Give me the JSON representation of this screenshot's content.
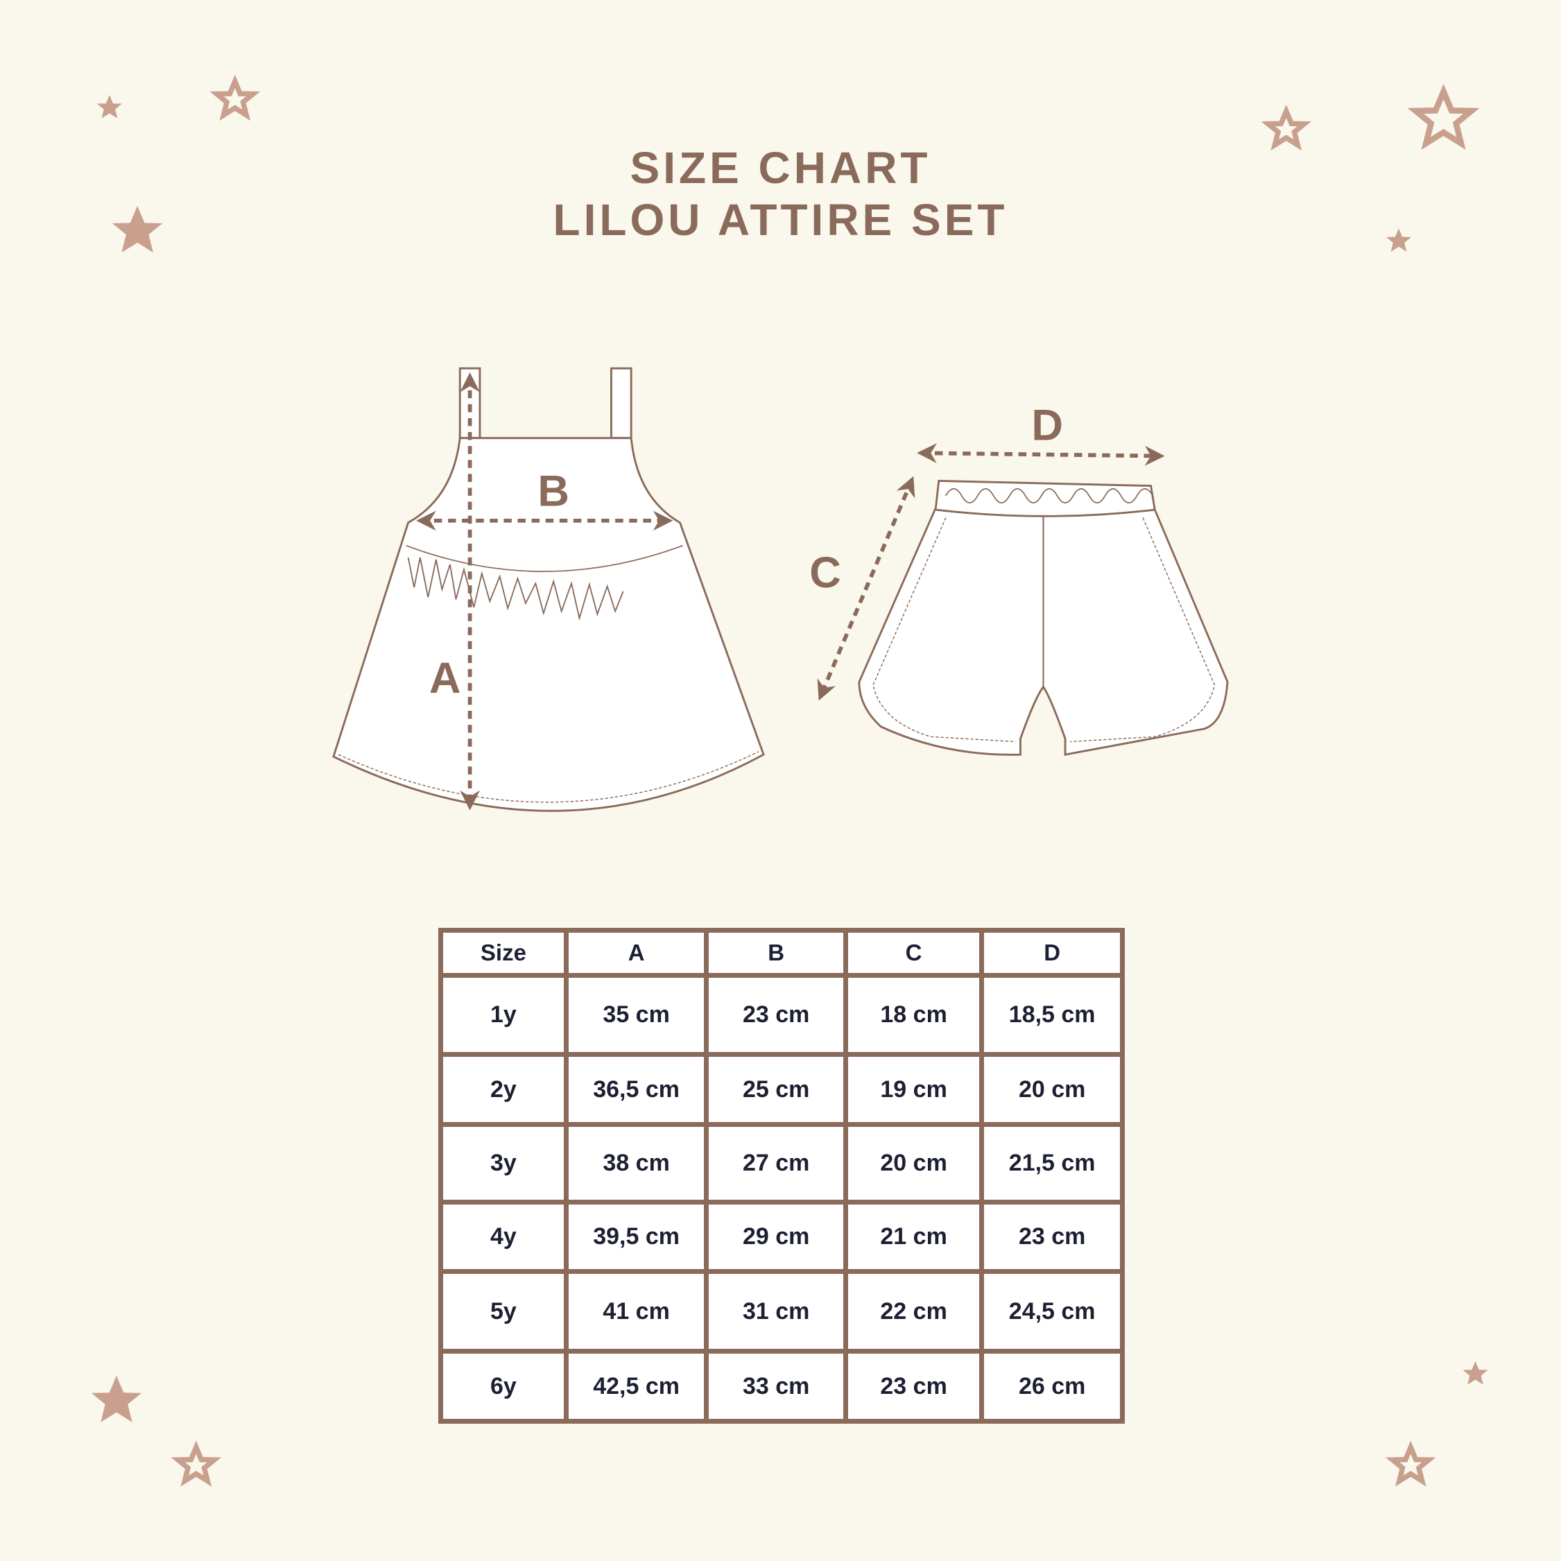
{
  "title": {
    "line1": "SIZE CHART",
    "line2": "LILOU ATTIRE SET"
  },
  "diagram": {
    "labels": {
      "A": "A",
      "B": "B",
      "C": "C",
      "D": "D"
    }
  },
  "colors": {
    "background": "#faf7ec",
    "brown": "#8a6a5a",
    "star": "#c9a08e",
    "text": "#1d1f33"
  },
  "table": {
    "headers": [
      "Size",
      "A",
      "B",
      "C",
      "D"
    ],
    "rows": [
      [
        "1y",
        "35 cm",
        "23 cm",
        "18 cm",
        "18,5 cm"
      ],
      [
        "2y",
        "36,5 cm",
        "25 cm",
        "19 cm",
        "20 cm"
      ],
      [
        "3y",
        "38 cm",
        "27 cm",
        "20 cm",
        "21,5 cm"
      ],
      [
        "4y",
        "39,5 cm",
        "29 cm",
        "21 cm",
        "23 cm"
      ],
      [
        "5y",
        "41 cm",
        "31 cm",
        "22 cm",
        "24,5 cm"
      ],
      [
        "6y",
        "42,5 cm",
        "33 cm",
        "23 cm",
        "26 cm"
      ]
    ]
  }
}
